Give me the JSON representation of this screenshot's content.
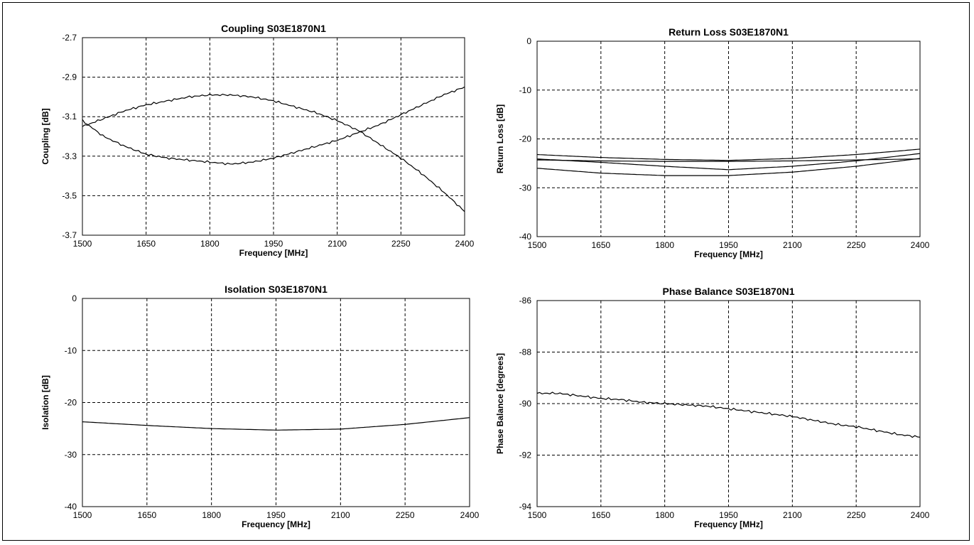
{
  "chart_data": [
    {
      "type": "line",
      "title": "Coupling S03E1870N1",
      "xlabel": "Frequency [MHz]",
      "ylabel": "Coupling [dB]",
      "xlim": [
        1500,
        2400
      ],
      "ylim": [
        -3.7,
        -2.7
      ],
      "xticks": [
        1500,
        1650,
        1800,
        1950,
        2100,
        2250,
        2400
      ],
      "yticks": [
        -2.7,
        -2.9,
        -3.1,
        -3.3,
        -3.5,
        -3.7
      ],
      "ytick_labels": [
        "-2.7",
        "-2.9",
        "-3.1",
        "-3.3",
        "-3.5",
        "-3.7"
      ],
      "grid": true,
      "series": [
        {
          "x": [
            1500,
            1550,
            1600,
            1650,
            1700,
            1750,
            1800,
            1850,
            1900,
            1950,
            2000,
            2050,
            2100,
            2150,
            2200,
            2250,
            2300,
            2350,
            2400
          ],
          "values": [
            -3.15,
            -3.11,
            -3.07,
            -3.04,
            -3.02,
            -3.0,
            -2.99,
            -2.99,
            -3.0,
            -3.02,
            -3.05,
            -3.08,
            -3.12,
            -3.17,
            -3.24,
            -3.31,
            -3.39,
            -3.48,
            -3.58
          ]
        },
        {
          "x": [
            1500,
            1550,
            1600,
            1650,
            1700,
            1750,
            1800,
            1850,
            1900,
            1950,
            2000,
            2050,
            2100,
            2150,
            2200,
            2250,
            2300,
            2350,
            2400
          ],
          "values": [
            -3.12,
            -3.2,
            -3.25,
            -3.29,
            -3.31,
            -3.32,
            -3.33,
            -3.34,
            -3.33,
            -3.31,
            -3.28,
            -3.25,
            -3.22,
            -3.18,
            -3.14,
            -3.09,
            -3.04,
            -2.99,
            -2.95
          ]
        }
      ]
    },
    {
      "type": "line",
      "title": "Return Loss S03E1870N1",
      "xlabel": "Frequency [MHz]",
      "ylabel": "Return Loss [dB]",
      "xlim": [
        1500,
        2400
      ],
      "ylim": [
        -40,
        0
      ],
      "xticks": [
        1500,
        1650,
        1800,
        1950,
        2100,
        2250,
        2400
      ],
      "yticks": [
        0,
        -10,
        -20,
        -30,
        -40
      ],
      "ytick_labels": [
        "0",
        "-10",
        "-20",
        "-30",
        "-40"
      ],
      "grid": true,
      "series": [
        {
          "x": [
            1500,
            1650,
            1800,
            1950,
            2100,
            2250,
            2400
          ],
          "values": [
            -23.2,
            -23.8,
            -24.2,
            -24.4,
            -24.0,
            -23.2,
            -22.1
          ]
        },
        {
          "x": [
            1500,
            1650,
            1800,
            1950,
            2100,
            2250,
            2400
          ],
          "values": [
            -24.1,
            -24.8,
            -25.6,
            -26.3,
            -25.6,
            -24.5,
            -23.0
          ]
        },
        {
          "x": [
            1500,
            1650,
            1800,
            1950,
            2100,
            2250,
            2400
          ],
          "values": [
            -26.0,
            -27.0,
            -27.5,
            -27.5,
            -26.8,
            -25.6,
            -24.0
          ]
        },
        {
          "x": [
            1500,
            1650,
            1800,
            1950,
            2100,
            2250,
            2400
          ],
          "values": [
            -24.3,
            -24.5,
            -24.6,
            -24.6,
            -24.5,
            -24.3,
            -24.1
          ]
        }
      ]
    },
    {
      "type": "line",
      "title": "Isolation S03E1870N1",
      "xlabel": "Frequency [MHz]",
      "ylabel": "Isolation [dB]",
      "xlim": [
        1500,
        2400
      ],
      "ylim": [
        -40,
        0
      ],
      "xticks": [
        1500,
        1650,
        1800,
        1950,
        2100,
        2250,
        2400
      ],
      "yticks": [
        0,
        -10,
        -20,
        -30,
        -40
      ],
      "ytick_labels": [
        "0",
        "-10",
        "-20",
        "-30",
        "-40"
      ],
      "grid": true,
      "series": [
        {
          "x": [
            1500,
            1650,
            1800,
            1950,
            2100,
            2250,
            2400
          ],
          "values": [
            -23.7,
            -24.4,
            -25.0,
            -25.3,
            -25.1,
            -24.2,
            -22.9
          ]
        }
      ]
    },
    {
      "type": "line",
      "title": "Phase Balance S03E1870N1",
      "xlabel": "Frequency [MHz]",
      "ylabel": "Phase Balance [degrees]",
      "xlim": [
        1500,
        2400
      ],
      "ylim": [
        -94,
        -86
      ],
      "xticks": [
        1500,
        1650,
        1800,
        1950,
        2100,
        2250,
        2400
      ],
      "yticks": [
        -86,
        -88,
        -90,
        -92,
        -94
      ],
      "ytick_labels": [
        "-86",
        "-88",
        "-90",
        "-92",
        "-94"
      ],
      "grid": true,
      "series": [
        {
          "x": [
            1500,
            1550,
            1600,
            1650,
            1700,
            1750,
            1800,
            1850,
            1900,
            1950,
            2000,
            2050,
            2100,
            2150,
            2200,
            2250,
            2300,
            2350,
            2400
          ],
          "values": [
            -89.6,
            -89.6,
            -89.7,
            -89.8,
            -89.85,
            -89.95,
            -90.0,
            -90.05,
            -90.1,
            -90.2,
            -90.3,
            -90.4,
            -90.5,
            -90.65,
            -90.8,
            -90.9,
            -91.05,
            -91.2,
            -91.3
          ]
        }
      ]
    }
  ]
}
